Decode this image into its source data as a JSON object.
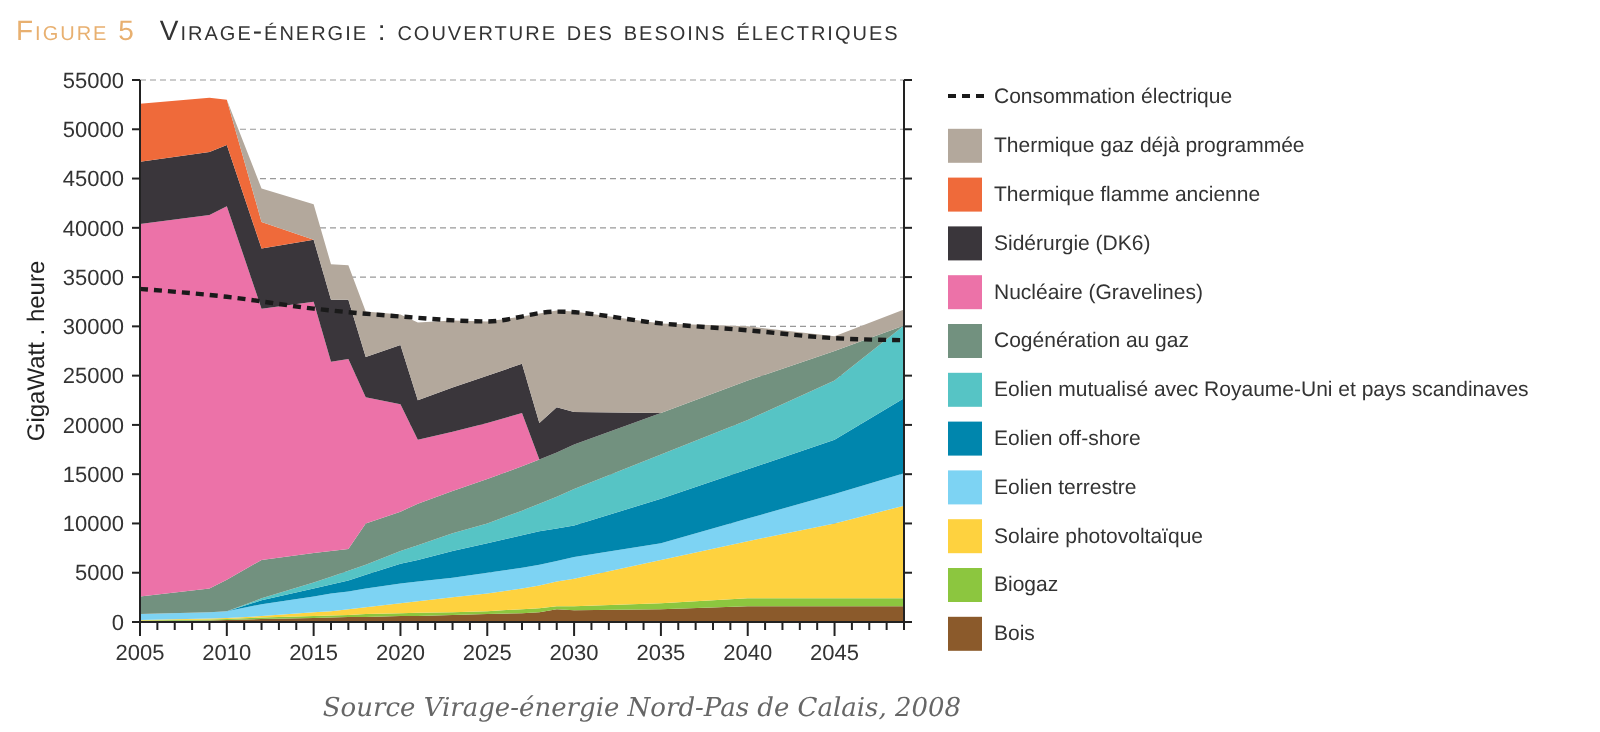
{
  "chart_data": {
    "type": "area",
    "stacked": true,
    "title": "Virage-énergie : couverture des besoins électriques",
    "ylabel": "GigaWatt . heure",
    "annotations": [
      "Figure 5",
      "Source Virage-énergie Nord-Pas de Calais, 2008"
    ],
    "x": [
      2005,
      2009,
      2010,
      2012,
      2015,
      2016,
      2017,
      2018,
      2020,
      2021,
      2023,
      2025,
      2027,
      2028,
      2029,
      2030,
      2035,
      2040,
      2045,
      2049
    ],
    "xlim": [
      2005,
      2049
    ],
    "xticks": [
      2005,
      {
        "value": 2006,
        "label": null
      },
      {
        "value": 2007,
        "label": null
      },
      {
        "value": 2008,
        "label": null
      },
      {
        "value": 2009,
        "label": null
      },
      2010,
      {
        "value": 2011,
        "label": null
      },
      {
        "value": 2012,
        "label": null
      },
      {
        "value": 2013,
        "label": null
      },
      {
        "value": 2014,
        "label": null
      },
      2015,
      {
        "value": 2016,
        "label": null
      },
      {
        "value": 2017,
        "label": null
      },
      {
        "value": 2018,
        "label": null
      },
      {
        "value": 2019,
        "label": null
      },
      2020,
      {
        "value": 2021,
        "label": null
      },
      {
        "value": 2022,
        "label": null
      },
      {
        "value": 2023,
        "label": null
      },
      {
        "value": 2024,
        "label": null
      },
      2025,
      {
        "value": 2026,
        "label": null
      },
      {
        "value": 2027,
        "label": null
      },
      {
        "value": 2028,
        "label": null
      },
      {
        "value": 2029,
        "label": null
      },
      2030,
      {
        "value": 2031,
        "label": null
      },
      {
        "value": 2032,
        "label": null
      },
      {
        "value": 2033,
        "label": null
      },
      {
        "value": 2034,
        "label": null
      },
      2035,
      {
        "value": 2036,
        "label": null
      },
      {
        "value": 2037,
        "label": null
      },
      {
        "value": 2038,
        "label": null
      },
      {
        "value": 2039,
        "label": null
      },
      2040,
      {
        "value": 2041,
        "label": null
      },
      {
        "value": 2042,
        "label": null
      },
      {
        "value": 2043,
        "label": null
      },
      {
        "value": 2044,
        "label": null
      },
      2045,
      {
        "value": 2046,
        "label": null
      },
      {
        "value": 2047,
        "label": null
      },
      {
        "value": 2048,
        "label": null
      },
      {
        "value": 2049,
        "label": null
      }
    ],
    "ylim": [
      0,
      55000
    ],
    "yticks": [
      0,
      5000,
      10000,
      15000,
      20000,
      25000,
      30000,
      35000,
      40000,
      45000,
      50000,
      55000
    ],
    "grid": "y",
    "legend": "right",
    "series": [
      {
        "name": "Bois",
        "color": "#8b5a2b",
        "values": [
          100,
          150,
          200,
          300,
          400,
          450,
          500,
          500,
          600,
          600,
          700,
          800,
          900,
          1000,
          1300,
          1200,
          1300,
          1600,
          1600,
          1600
        ]
      },
      {
        "name": "Biogaz",
        "color": "#8cc63f",
        "values": [
          50,
          100,
          100,
          150,
          200,
          200,
          200,
          300,
          300,
          350,
          300,
          300,
          400,
          400,
          300,
          400,
          600,
          800,
          800,
          800
        ]
      },
      {
        "name": "Solaire photovoltaïque",
        "color": "#fed23f",
        "values": [
          50,
          100,
          100,
          150,
          400,
          450,
          600,
          700,
          1000,
          1150,
          1500,
          1800,
          2100,
          2300,
          2500,
          2800,
          4400,
          5800,
          7600,
          9400
        ]
      },
      {
        "name": "Eolien terrestre",
        "color": "#7dd3f3",
        "values": [
          600,
          650,
          700,
          1200,
          1600,
          1800,
          1800,
          1900,
          2000,
          2000,
          2000,
          2100,
          2100,
          2100,
          2100,
          2200,
          1700,
          2300,
          3000,
          3300
        ]
      },
      {
        "name": "Eolien off-shore",
        "color": "#0086ad",
        "values": [
          null,
          null,
          0,
          400,
          800,
          900,
          1100,
          1400,
          2000,
          2200,
          2700,
          3000,
          3300,
          3400,
          3300,
          3200,
          4500,
          5000,
          5500,
          7600
        ]
      },
      {
        "name": "Eolien mutualisé avec Royaume-Uni et pays scandinaves",
        "color": "#56c4c5",
        "values": [
          null,
          null,
          0,
          200,
          600,
          800,
          1000,
          1000,
          1300,
          1500,
          1800,
          2000,
          2500,
          2800,
          3200,
          3700,
          4500,
          5000,
          6000,
          7400
        ]
      },
      {
        "name": "Cogénération au gaz",
        "color": "#72917f",
        "values": [
          1800,
          2400,
          3200,
          3900,
          3000,
          2600,
          2200,
          4200,
          4000,
          4200,
          4300,
          4500,
          4500,
          4500,
          4500,
          4500,
          4200,
          4000,
          3000,
          0
        ]
      },
      {
        "name": "Nucléaire (Gravelines)",
        "color": "#ec72a8",
        "values": [
          37800,
          37900,
          37900,
          25500,
          25500,
          19200,
          19300,
          12800,
          10900,
          6500,
          6000,
          5700,
          5400,
          0,
          null,
          null,
          null,
          null,
          null,
          null
        ]
      },
      {
        "name": "Sidérurgie (DK6)",
        "color": "#3a363b",
        "values": [
          6300,
          6400,
          6200,
          6100,
          6300,
          6300,
          6000,
          4100,
          6000,
          4000,
          4500,
          4800,
          5000,
          3700,
          4600,
          3300,
          0,
          null,
          null,
          null
        ]
      },
      {
        "name": "Thermique flamme ancienne",
        "color": "#ef6a3a",
        "values": [
          5900,
          5500,
          4600,
          2700,
          0,
          null,
          null,
          null,
          null,
          null,
          null,
          null,
          null,
          null,
          null,
          null,
          null,
          null,
          null,
          null
        ]
      },
      {
        "name": "Thermique gaz déjà programmée",
        "color": "#b3a89c",
        "values": [
          null,
          null,
          0,
          3400,
          3600,
          3600,
          3500,
          4600,
          3100,
          7900,
          6800,
          5500,
          4800,
          11100,
          9800,
          10200,
          9100,
          5500,
          1500,
          1600
        ]
      },
      {
        "name": "Consommation électrique",
        "type": "line",
        "color": "#1a1a1a",
        "line_style": "dashed",
        "x": [
          2005,
          2010,
          2015,
          2020,
          2025,
          2029,
          2035,
          2040,
          2045,
          2049
        ],
        "values": [
          33800,
          33000,
          31800,
          31000,
          30500,
          31500,
          30300,
          29600,
          28800,
          28600
        ]
      }
    ]
  }
}
